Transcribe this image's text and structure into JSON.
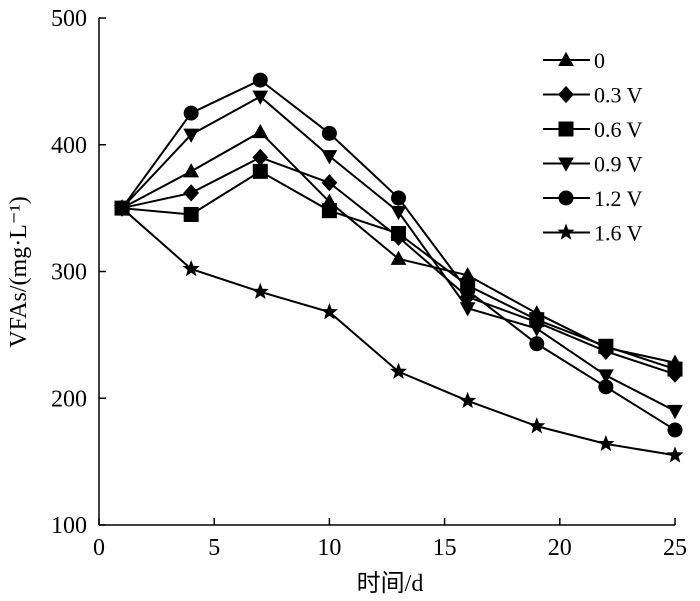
{
  "chart_data": {
    "type": "line",
    "title": "",
    "xlabel": "时间/d",
    "ylabel": "VFAs/(mg·L⁻¹)",
    "xlim": [
      0,
      25
    ],
    "ylim": [
      100,
      500
    ],
    "xticks": [
      0,
      5,
      10,
      15,
      20,
      25
    ],
    "yticks": [
      100,
      200,
      300,
      400,
      500
    ],
    "grid": false,
    "legend_position": "top-right",
    "x": [
      1,
      4,
      7,
      10,
      13,
      16,
      19,
      22,
      25
    ],
    "series": [
      {
        "name": "0",
        "marker": "triangle-up",
        "values": [
          350,
          379,
          410,
          355,
          310,
          297,
          267,
          240,
          228
        ]
      },
      {
        "name": "0.3 V",
        "marker": "diamond",
        "values": [
          350,
          362,
          390,
          370,
          327,
          280,
          260,
          237,
          219
        ]
      },
      {
        "name": "0.6 V",
        "marker": "square",
        "values": [
          350,
          345,
          379,
          348,
          330,
          289,
          262,
          241,
          223
        ]
      },
      {
        "name": "0.9 V",
        "marker": "triangle-down",
        "values": [
          350,
          408,
          438,
          391,
          347,
          271,
          255,
          218,
          190
        ]
      },
      {
        "name": "1.2 V",
        "marker": "circle",
        "values": [
          350,
          425,
          451,
          409,
          358,
          285,
          243,
          209,
          175
        ]
      },
      {
        "name": "1.6 V",
        "marker": "star",
        "values": [
          350,
          302,
          284,
          268,
          221,
          198,
          178,
          164,
          155
        ]
      }
    ],
    "line_color": "#000000"
  }
}
